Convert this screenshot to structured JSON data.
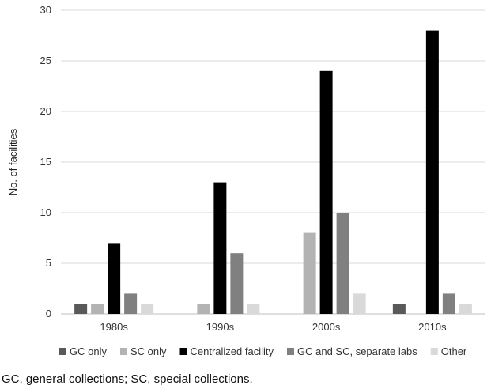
{
  "chart_data": {
    "type": "bar",
    "categories": [
      "1980s",
      "1990s",
      "2000s",
      "2010s"
    ],
    "series": [
      {
        "name": "GC only",
        "color": "#595959",
        "values": [
          1,
          0,
          0,
          1
        ]
      },
      {
        "name": "SC only",
        "color": "#b3b3b3",
        "values": [
          1,
          1,
          8,
          0
        ]
      },
      {
        "name": "Centralized facility",
        "color": "#000000",
        "values": [
          7,
          13,
          24,
          28
        ]
      },
      {
        "name": "GC and SC, separate labs",
        "color": "#808080",
        "values": [
          2,
          6,
          10,
          2
        ]
      },
      {
        "name": "Other",
        "color": "#d9d9d9",
        "values": [
          1,
          1,
          2,
          1
        ]
      }
    ],
    "ylabel": "No. of facilities",
    "xlabel": "",
    "ylim": [
      0,
      30
    ],
    "yticks": [
      0,
      5,
      10,
      15,
      20,
      25,
      30
    ],
    "grid": true,
    "legend_position": "bottom"
  },
  "caption": "GC, general collections; SC, special collections."
}
